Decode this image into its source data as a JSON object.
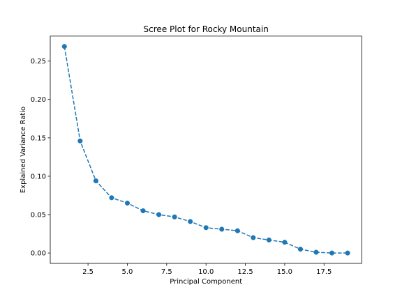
{
  "chart_data": {
    "type": "line",
    "title": "Scree Plot for Rocky Mountain",
    "xlabel": "Principal Component",
    "ylabel": "Explained Variance Ratio",
    "x": [
      1,
      2,
      3,
      4,
      5,
      6,
      7,
      8,
      9,
      10,
      11,
      12,
      13,
      14,
      15,
      16,
      17,
      18,
      19
    ],
    "series": [
      {
        "values": [
          0.269,
          0.146,
          0.094,
          0.072,
          0.065,
          0.055,
          0.05,
          0.047,
          0.041,
          0.033,
          0.031,
          0.029,
          0.02,
          0.017,
          0.014,
          0.005,
          0.001,
          0.0,
          0.0
        ],
        "color": "#1f77b4",
        "line_style": "dashed",
        "marker": "circle"
      }
    ],
    "xlim": [
      0.1,
      19.9
    ],
    "ylim": [
      -0.0135,
      0.2825
    ],
    "x_ticks": [
      2.5,
      5.0,
      7.5,
      10.0,
      12.5,
      15.0,
      17.5
    ],
    "x_tick_labels": [
      "2.5",
      "5.0",
      "7.5",
      "10.0",
      "12.5",
      "15.0",
      "17.5"
    ],
    "y_ticks": [
      0.0,
      0.05,
      0.1,
      0.15,
      0.2,
      0.25
    ],
    "y_tick_labels": [
      "0.00",
      "0.05",
      "0.10",
      "0.15",
      "0.20",
      "0.25"
    ],
    "grid": false,
    "legend": "none"
  }
}
